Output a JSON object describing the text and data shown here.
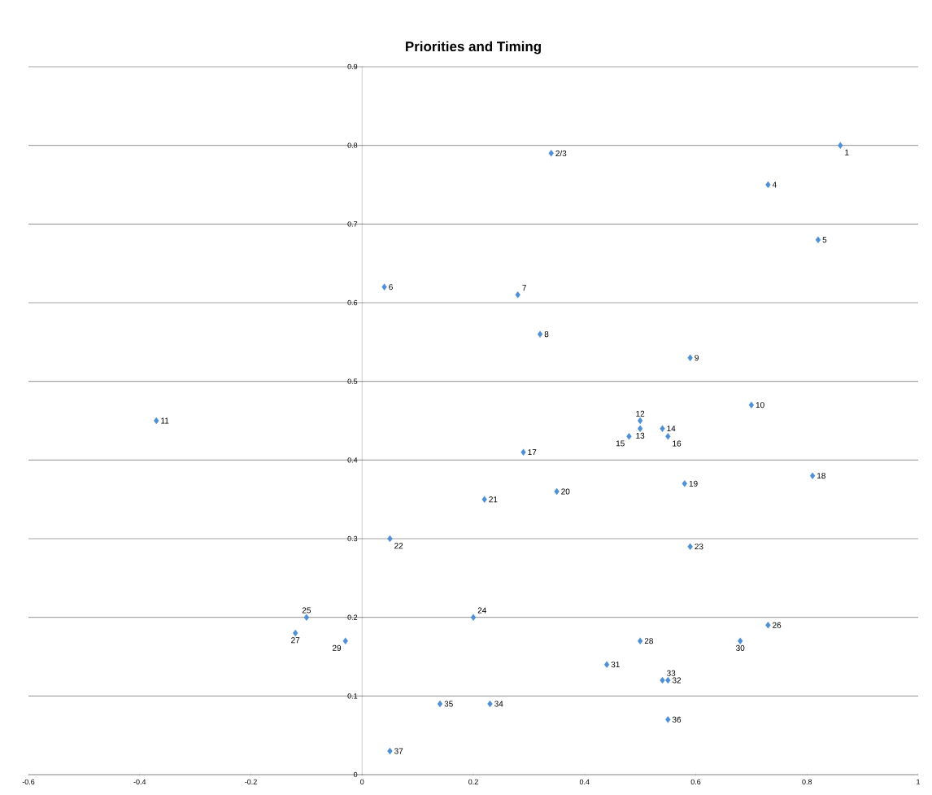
{
  "chart_data": {
    "type": "scatter",
    "title": "Priorities and Timing",
    "series": [
      {
        "color": "#4f8fd6",
        "x": [
          0.86,
          0.34,
          0.73,
          0.82,
          0.04,
          0.28,
          0.32,
          0.59,
          0.7,
          -0.37,
          0.5,
          0.5,
          0.54,
          0.48,
          0.55,
          0.29,
          0.81,
          0.58,
          0.35,
          0.22,
          0.05,
          0.59,
          0.2,
          -0.1,
          0.73,
          -0.12,
          0.5,
          -0.03,
          0.68,
          0.44,
          0.55,
          0.54,
          0.23,
          0.14,
          0.55,
          0.05
        ],
        "values": [
          0.8,
          0.79,
          0.75,
          0.68,
          0.62,
          0.61,
          0.56,
          0.53,
          0.47,
          0.45,
          0.45,
          0.44,
          0.44,
          0.43,
          0.43,
          0.41,
          0.38,
          0.37,
          0.36,
          0.35,
          0.3,
          0.29,
          0.2,
          0.2,
          0.19,
          0.18,
          0.17,
          0.17,
          0.17,
          0.14,
          0.12,
          0.12,
          0.09,
          0.09,
          0.07,
          0.03
        ]
      }
    ],
    "annotations": [
      {
        "text": "1",
        "x": 0.86,
        "y": 0.8
      },
      {
        "text": "2/3",
        "x": 0.34,
        "y": 0.79
      },
      {
        "text": "4",
        "x": 0.73,
        "y": 0.75
      },
      {
        "text": "5",
        "x": 0.82,
        "y": 0.68
      },
      {
        "text": "6",
        "x": 0.04,
        "y": 0.62
      },
      {
        "text": "7",
        "x": 0.28,
        "y": 0.61
      },
      {
        "text": "8",
        "x": 0.32,
        "y": 0.56
      },
      {
        "text": "9",
        "x": 0.59,
        "y": 0.53
      },
      {
        "text": "10",
        "x": 0.7,
        "y": 0.47
      },
      {
        "text": "11",
        "x": -0.37,
        "y": 0.45
      },
      {
        "text": "12",
        "x": 0.5,
        "y": 0.45
      },
      {
        "text": "13",
        "x": 0.5,
        "y": 0.44
      },
      {
        "text": "14",
        "x": 0.54,
        "y": 0.44
      },
      {
        "text": "15",
        "x": 0.48,
        "y": 0.43
      },
      {
        "text": "16",
        "x": 0.55,
        "y": 0.43
      },
      {
        "text": "17",
        "x": 0.29,
        "y": 0.41
      },
      {
        "text": "18",
        "x": 0.81,
        "y": 0.38
      },
      {
        "text": "19",
        "x": 0.58,
        "y": 0.37
      },
      {
        "text": "20",
        "x": 0.35,
        "y": 0.36
      },
      {
        "text": "21",
        "x": 0.22,
        "y": 0.35
      },
      {
        "text": "22",
        "x": 0.05,
        "y": 0.3
      },
      {
        "text": "23",
        "x": 0.59,
        "y": 0.29
      },
      {
        "text": "24",
        "x": 0.2,
        "y": 0.2
      },
      {
        "text": "25",
        "x": -0.1,
        "y": 0.2
      },
      {
        "text": "26",
        "x": 0.73,
        "y": 0.19
      },
      {
        "text": "27",
        "x": -0.12,
        "y": 0.18
      },
      {
        "text": "28",
        "x": 0.5,
        "y": 0.17
      },
      {
        "text": "29",
        "x": -0.03,
        "y": 0.17
      },
      {
        "text": "30",
        "x": 0.68,
        "y": 0.17
      },
      {
        "text": "31",
        "x": 0.44,
        "y": 0.14
      },
      {
        "text": "32",
        "x": 0.55,
        "y": 0.12
      },
      {
        "text": "33",
        "x": 0.54,
        "y": 0.12
      },
      {
        "text": "34",
        "x": 0.23,
        "y": 0.09
      },
      {
        "text": "35",
        "x": 0.14,
        "y": 0.09
      },
      {
        "text": "36",
        "x": 0.55,
        "y": 0.07
      },
      {
        "text": "37",
        "x": 0.05,
        "y": 0.03
      }
    ],
    "xlim": [
      -0.6,
      1
    ],
    "ylim": [
      0,
      0.9
    ],
    "xticks": [
      -0.6,
      -0.4,
      -0.2,
      0,
      0.2,
      0.4,
      0.6,
      0.8,
      1
    ],
    "yticks": [
      0,
      0.1,
      0.2,
      0.3,
      0.4,
      0.5,
      0.6,
      0.7,
      0.8,
      0.9
    ],
    "grid": "y",
    "marker": "diamond"
  }
}
